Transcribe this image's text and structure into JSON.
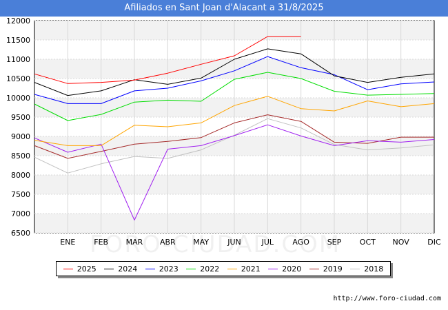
{
  "chart_data": {
    "type": "line",
    "title": "Afiliados en Sant Joan d'Alacant a 31/8/2025",
    "categories": [
      "",
      "ENE",
      "FEB",
      "MAR",
      "ABR",
      "MAY",
      "JUN",
      "JUL",
      "AGO",
      "SEP",
      "OCT",
      "NOV",
      "DIC"
    ],
    "ylim": [
      6500,
      12000
    ],
    "yticks": [
      6500,
      7000,
      7500,
      8000,
      8500,
      9000,
      9500,
      10000,
      10500,
      11000,
      11500,
      12000
    ],
    "xlabel": "",
    "ylabel": "",
    "grid": true,
    "legend_position": "bottom",
    "series": [
      {
        "name": "2025",
        "color": "#ff0000",
        "values": [
          10620,
          10370,
          10400,
          10460,
          10640,
          10870,
          11090,
          11590,
          11590,
          null,
          null,
          null,
          null
        ]
      },
      {
        "name": "2024",
        "color": "#000000",
        "values": [
          10400,
          10060,
          10180,
          10470,
          10350,
          10510,
          11000,
          11270,
          11140,
          10570,
          10400,
          10530,
          10620
        ]
      },
      {
        "name": "2023",
        "color": "#0000ff",
        "values": [
          10090,
          9850,
          9850,
          10180,
          10250,
          10440,
          10700,
          11070,
          10780,
          10600,
          10210,
          10360,
          10410
        ]
      },
      {
        "name": "2022",
        "color": "#00dd00",
        "values": [
          9840,
          9410,
          9570,
          9890,
          9940,
          9910,
          10480,
          10660,
          10500,
          10170,
          10070,
          10090,
          10110
        ]
      },
      {
        "name": "2021",
        "color": "#ffa500",
        "values": [
          8900,
          8760,
          8760,
          9290,
          9250,
          9350,
          9800,
          10040,
          9720,
          9660,
          9920,
          9770,
          9850
        ]
      },
      {
        "name": "2020",
        "color": "#a020f0",
        "values": [
          8960,
          8590,
          8800,
          6830,
          8670,
          8760,
          9020,
          9300,
          9010,
          8760,
          8890,
          8850,
          8920
        ]
      },
      {
        "name": "2019",
        "color": "#a52a2a",
        "values": [
          8760,
          8430,
          8610,
          8800,
          8870,
          8970,
          9350,
          9560,
          9390,
          8850,
          8820,
          8980,
          8980
        ]
      },
      {
        "name": "2018",
        "color": "#c0c0c0",
        "values": [
          8460,
          8050,
          8290,
          8480,
          8430,
          8650,
          9030,
          9460,
          9220,
          8790,
          8650,
          8700,
          8780
        ]
      }
    ]
  },
  "source_text": "http://www.foro-ciudad.com",
  "watermark_text": "FORO-CIUDAD.COM"
}
